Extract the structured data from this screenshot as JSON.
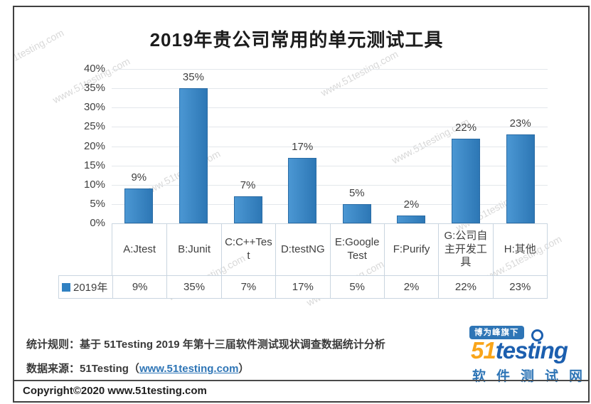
{
  "page": {
    "watermark_text": "www.51testing.com",
    "copyright": "Copyright©2020 www.51testing.com"
  },
  "chart_data": {
    "type": "bar",
    "title": "2019年贵公司常用的单元测试工具",
    "categories": [
      "A:Jtest",
      "B:Junit",
      "C:C++Test",
      "D:testNG",
      "E:Google Test",
      "F:Purify",
      "G:公司自主开发工具",
      "H:其他"
    ],
    "series": [
      {
        "name": "2019年",
        "values": [
          9,
          35,
          7,
          17,
          5,
          2,
          22,
          23
        ]
      }
    ],
    "value_labels": [
      "9%",
      "35%",
      "7%",
      "17%",
      "5%",
      "2%",
      "22%",
      "23%"
    ],
    "yticks": [
      "40%",
      "35%",
      "30%",
      "25%",
      "20%",
      "15%",
      "10%",
      "5%",
      "0%"
    ],
    "ylim": [
      0,
      40
    ],
    "grid": true,
    "legend_position": "data-table-left",
    "bar_color": "#3a87c6",
    "xlabel": "",
    "ylabel": ""
  },
  "footer": {
    "stat_label": "统计规则：",
    "stat_text": "基于 51Testing 2019 年第十三届软件测试现状调查数据统计分析",
    "source_label": "数据来源：",
    "source_text": "51Testing（",
    "source_link": "www.51testing.com",
    "source_suffix": "）"
  },
  "logo": {
    "badge": "博为峰旗下",
    "brand_prefix": "51",
    "brand_mid": "test",
    "brand_i": "i",
    "brand_tail": "ng",
    "subtitle": "软件测试网",
    "brand_orange": "#f9a51a",
    "brand_blue": "#1c5faf",
    "link_blue": "#2e75b6"
  }
}
